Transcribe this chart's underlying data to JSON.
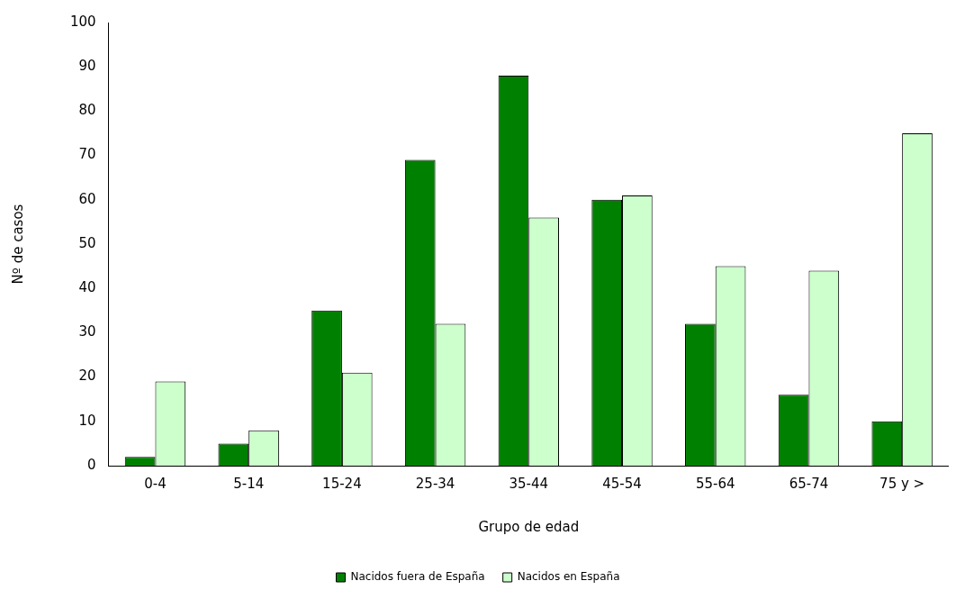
{
  "chart_data": {
    "type": "bar",
    "xlabel": "Grupo de edad",
    "ylabel": "Nº de casos",
    "categories": [
      "0-4",
      "5-14",
      "15-24",
      "25-34",
      "35-44",
      "45-54",
      "55-64",
      "65-74",
      "75 y >"
    ],
    "series": [
      {
        "name": "Nacidos fuera de España",
        "color": "#008000",
        "values": [
          2,
          5,
          35,
          69,
          88,
          60,
          32,
          16,
          10
        ]
      },
      {
        "name": "Nacidos en España",
        "color": "#ccffcc",
        "values": [
          19,
          8,
          21,
          32,
          56,
          61,
          45,
          44,
          75
        ]
      }
    ],
    "ylim": [
      0,
      100
    ],
    "yticks": [
      0,
      10,
      20,
      30,
      40,
      50,
      60,
      70,
      80,
      90,
      100
    ],
    "grid": false,
    "legend": "bottom"
  }
}
